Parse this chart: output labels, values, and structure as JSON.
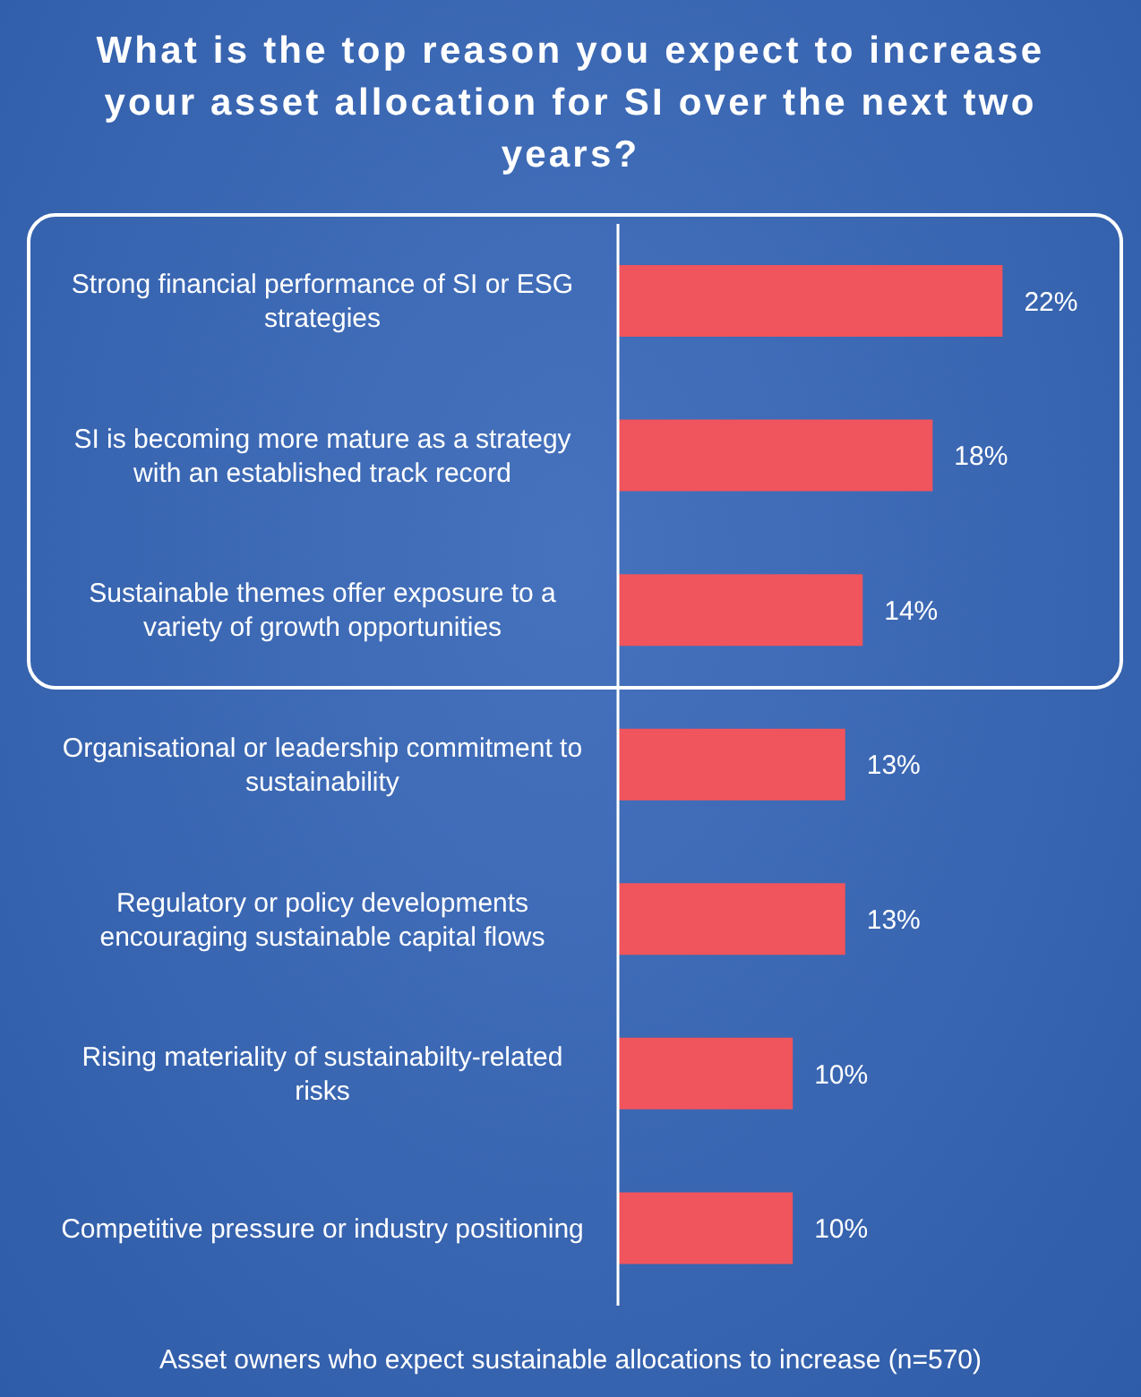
{
  "chart_data": {
    "type": "bar",
    "orientation": "horizontal",
    "title": "What is the top reason you expect to increase your asset allocation for SI over the next two years?",
    "categories": [
      "Strong financial performance of SI or ESG strategies",
      "SI is becoming more mature as a strategy with an established track record",
      "Sustainable themes offer exposure to a variety of growth opportunities",
      "Organisational or leadership commitment to sustainability",
      "Regulatory or policy developments encouraging sustainable capital flows",
      "Rising materiality of sustainabilty-related risks",
      "Competitive pressure or industry positioning"
    ],
    "values": [
      22,
      18,
      14,
      13,
      13,
      10,
      10
    ],
    "value_labels": [
      "22%",
      "18%",
      "14%",
      "13%",
      "13%",
      "10%",
      "10%"
    ],
    "color": "#f0545c",
    "annotations": [
      "Asset owners who expect sustainable allocations to increase (n=570)"
    ]
  }
}
